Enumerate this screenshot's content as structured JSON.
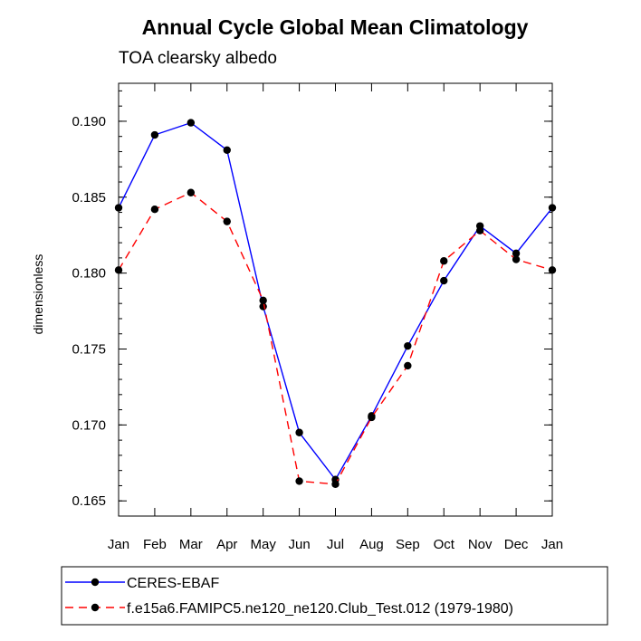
{
  "chart_data": {
    "type": "line",
    "title": "Annual Cycle Global Mean Climatology",
    "subtitle": "TOA clearsky albedo",
    "xlabel": "",
    "ylabel": "dimensionless",
    "categories": [
      "Jan",
      "Feb",
      "Mar",
      "Apr",
      "May",
      "Jun",
      "Jul",
      "Aug",
      "Sep",
      "Oct",
      "Nov",
      "Dec",
      "Jan"
    ],
    "ylim": [
      0.164,
      0.1925
    ],
    "yticks": [
      "0.165",
      "0.170",
      "0.175",
      "0.180",
      "0.185",
      "0.190"
    ],
    "grid": false,
    "legend_position": "bottom",
    "series": [
      {
        "name": "CERES-EBAF",
        "color": "#0000ff",
        "style": "solid",
        "values": [
          0.1843,
          0.1891,
          0.1899,
          0.1881,
          0.1778,
          0.1695,
          0.1664,
          0.1706,
          0.1752,
          0.1795,
          0.1831,
          0.1813,
          0.1843
        ]
      },
      {
        "name": "f.e15a6.FAMIPC5.ne120_ne120.Club_Test.012 (1979-1980)",
        "color": "#ff0000",
        "style": "dashed",
        "values": [
          0.1802,
          0.1842,
          0.1853,
          0.1834,
          0.1782,
          0.1663,
          0.1661,
          0.1705,
          0.1739,
          0.1808,
          0.1828,
          0.1809,
          0.1802
        ]
      }
    ]
  }
}
